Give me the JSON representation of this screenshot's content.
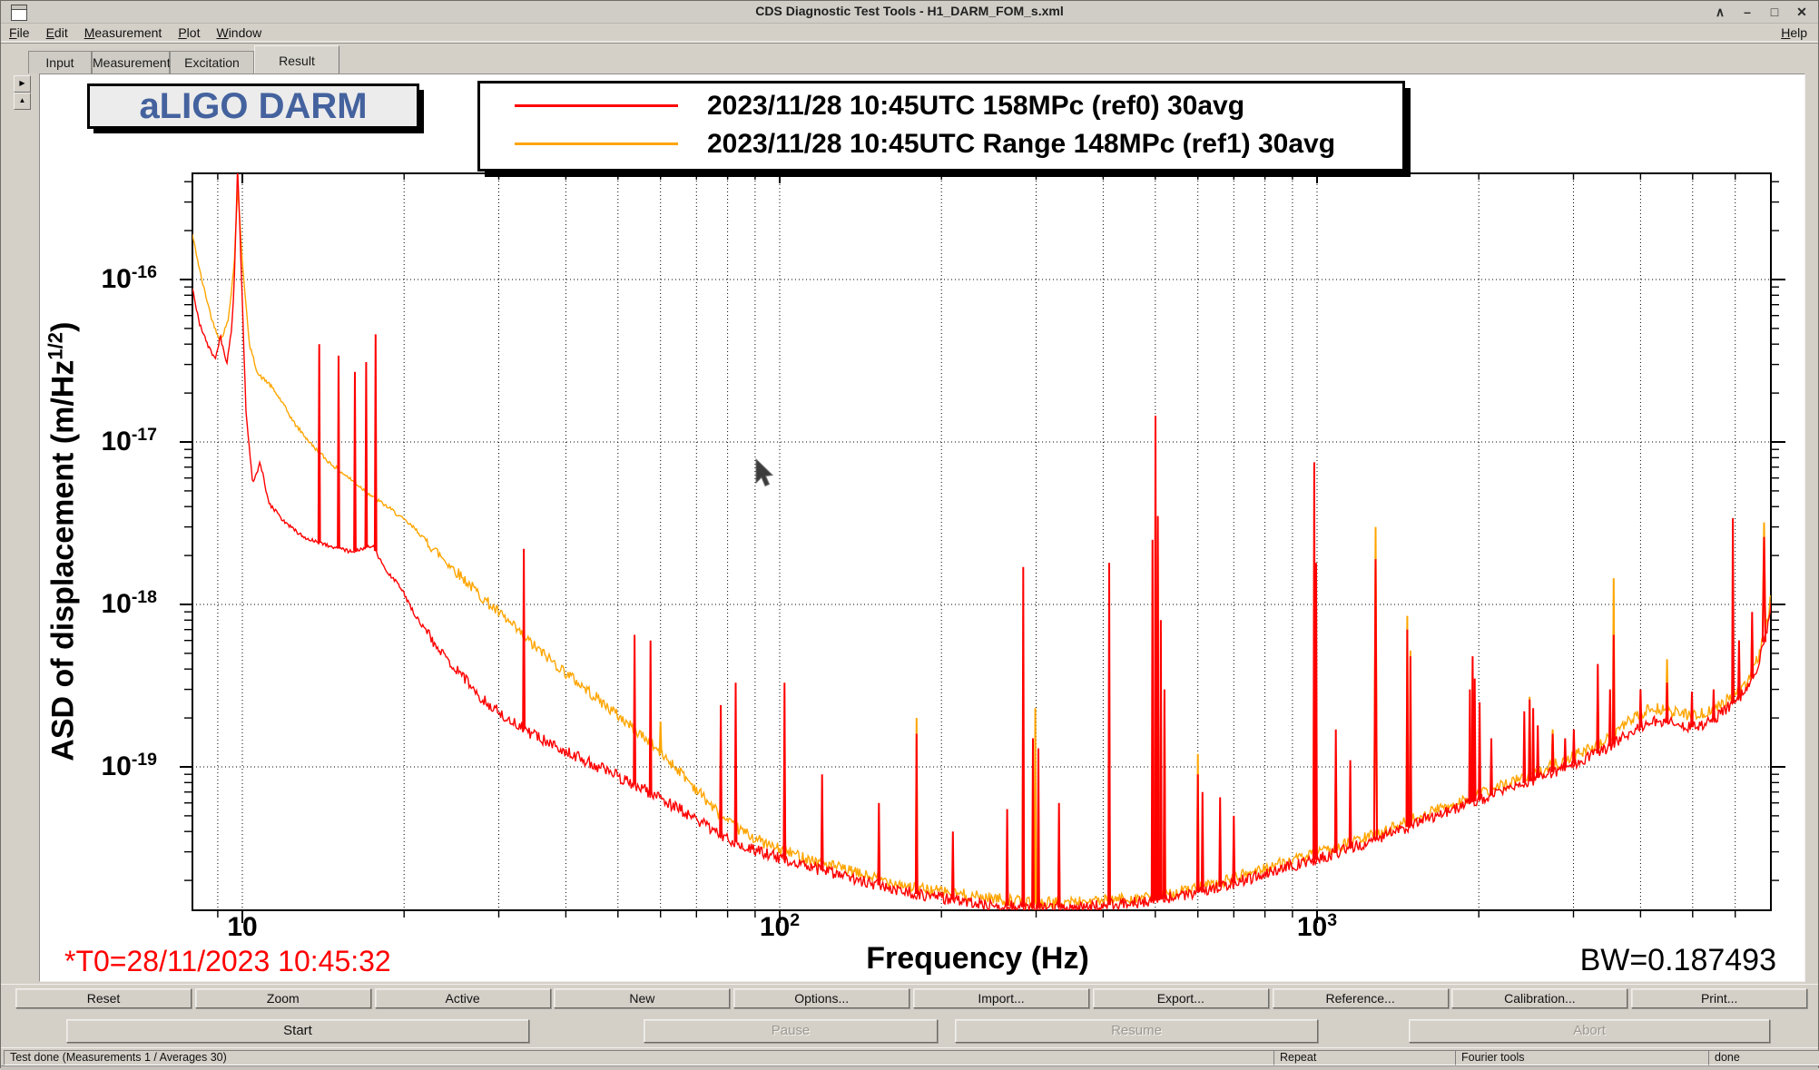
{
  "window": {
    "title": "CDS Diagnostic Test Tools - H1_DARM_FOM_s.xml",
    "controls": [
      {
        "name": "shade-icon",
        "glyph": "∧"
      },
      {
        "name": "minimize-icon",
        "glyph": "–"
      },
      {
        "name": "maximize-icon",
        "glyph": "□"
      },
      {
        "name": "close-icon",
        "glyph": "✕"
      }
    ]
  },
  "menubar": {
    "items": [
      "File",
      "Edit",
      "Measurement",
      "Plot",
      "Window"
    ],
    "right_item": "Help"
  },
  "tabs": {
    "items": [
      "Input",
      "Measurement",
      "Excitation",
      "Result"
    ],
    "active": "Result"
  },
  "side_buttons": [
    {
      "name": "expand-right-icon",
      "glyph": "▶"
    },
    {
      "name": "collapse-up-icon",
      "glyph": "▲"
    }
  ],
  "plot": {
    "title_box": "aLIGO DARM",
    "t0_note": "*T0=28/11/2023 10:45:32",
    "bw_note": "BW=0.187493",
    "xlabel": "Frequency (Hz)",
    "ylabel_prefix": "ASD of displacement (m/Hz",
    "ylabel_sup": "1/2",
    "ylabel_suffix": ")"
  },
  "chart_data": {
    "type": "line",
    "title": "aLIGO DARM",
    "xlabel": "Frequency (Hz)",
    "ylabel": "ASD of displacement (m/Hz^1/2)",
    "xscale": "log",
    "yscale": "log",
    "xlim": [
      8.07,
      7000
    ],
    "ylim": [
      1.3e-20,
      4.5e-16
    ],
    "grid": "dotted, all decade multiples on x, decades on y",
    "legend_position": "top",
    "xticks": [
      {
        "f": 10,
        "base": "10",
        "sup": ""
      },
      {
        "f": 100,
        "base": "10",
        "sup": "2"
      },
      {
        "f": 1000,
        "base": "10",
        "sup": "3"
      }
    ],
    "yticks": [
      {
        "a": 1e-16,
        "sup": "-16"
      },
      {
        "a": 1e-17,
        "sup": "-17"
      },
      {
        "a": 1e-18,
        "sup": "-18"
      },
      {
        "a": 1e-19,
        "sup": "-19"
      }
    ],
    "series": [
      {
        "name": "2023/11/28 10:45UTC Range 148MPc (ref1) 30avg",
        "color": "#ffa500",
        "backbone": [
          [
            8.07,
            1.9e-16
          ],
          [
            8.4,
            1e-16
          ],
          [
            8.8,
            5.5e-17
          ],
          [
            9.1,
            4.2e-17
          ],
          [
            9.4,
            5.5e-17
          ],
          [
            9.65,
            1.2e-16
          ],
          [
            9.8,
            3.7e-16
          ],
          [
            10.0,
            1.3e-16
          ],
          [
            10.3,
            4e-17
          ],
          [
            10.7,
            2.6e-17
          ],
          [
            11.2,
            2.3e-17
          ],
          [
            11.8,
            1.8e-17
          ],
          [
            12.5,
            1.3e-17
          ],
          [
            13.5,
            9.5e-18
          ],
          [
            14.5,
            7.5e-18
          ],
          [
            16,
            5.8e-18
          ],
          [
            17.5,
            4.6e-18
          ],
          [
            19,
            3.8e-18
          ],
          [
            21,
            2.9e-18
          ],
          [
            23,
            2.1e-18
          ],
          [
            25,
            1.6e-18
          ],
          [
            28,
            1.1e-18
          ],
          [
            31,
            8e-19
          ],
          [
            35,
            5.5e-19
          ],
          [
            40,
            3.8e-19
          ],
          [
            46,
            2.6e-19
          ],
          [
            55,
            1.6e-19
          ],
          [
            65,
            9.5e-20
          ],
          [
            80,
            4.5e-20
          ],
          [
            95,
            3.3e-20
          ],
          [
            110,
            2.8e-20
          ],
          [
            140,
            2.2e-20
          ],
          [
            180,
            1.8e-20
          ],
          [
            230,
            1.6e-20
          ],
          [
            300,
            1.45e-20
          ],
          [
            400,
            1.5e-20
          ],
          [
            500,
            1.6e-20
          ],
          [
            650,
            1.9e-20
          ],
          [
            800,
            2.4e-20
          ],
          [
            1000,
            2.9e-20
          ],
          [
            1300,
            3.9e-20
          ],
          [
            1700,
            5.6e-20
          ],
          [
            2200,
            7.6e-20
          ],
          [
            2800,
            1.05e-19
          ],
          [
            3400,
            1.4e-19
          ],
          [
            3800,
            1.9e-19
          ],
          [
            4200,
            2.3e-19
          ],
          [
            4600,
            2.2e-19
          ],
          [
            5000,
            2.05e-19
          ],
          [
            5400,
            2.2e-19
          ],
          [
            5900,
            2.7e-19
          ],
          [
            6300,
            3.3e-19
          ],
          [
            6600,
            4.6e-19
          ],
          [
            6850,
            7e-19
          ],
          [
            7000,
            1.15e-18
          ]
        ],
        "spikes": [
          [
            60,
            1.9e-19
          ],
          [
            102.1,
            9e-20
          ],
          [
            179.8,
            2e-19
          ],
          [
            283.9,
            3.5e-19
          ],
          [
            299,
            2.3e-19
          ],
          [
            410.3,
            1.6e-19
          ],
          [
            500.5,
            4e-18
          ],
          [
            505.5,
            2e-18
          ],
          [
            520,
            2.6e-19
          ],
          [
            600,
            1.2e-19
          ],
          [
            988,
            2.2e-18
          ],
          [
            1083.7,
            1.2e-19
          ],
          [
            1285,
            3e-18,
            0.006
          ],
          [
            1472,
            8.5e-19
          ],
          [
            1492,
            5.2e-19
          ],
          [
            1948,
            4e-19
          ],
          [
            2487,
            2.7e-19
          ],
          [
            2745,
            1.7e-19
          ],
          [
            3330,
            3.2e-19
          ],
          [
            3565,
            1.45e-18
          ],
          [
            4480,
            4.6e-19
          ],
          [
            5940,
            6e-19
          ],
          [
            6450,
            7e-19
          ],
          [
            6790,
            3.2e-18,
            0.006
          ]
        ]
      },
      {
        "name": "2023/11/28 10:45UTC 158MPc (ref0) 30avg",
        "color": "#ff0000",
        "backbone": [
          [
            8.07,
            9e-17
          ],
          [
            8.3,
            5.5e-17
          ],
          [
            8.6,
            4e-17
          ],
          [
            8.9,
            3.2e-17
          ],
          [
            9.1,
            4.5e-17
          ],
          [
            9.35,
            3e-17
          ],
          [
            9.55,
            5e-17
          ],
          [
            9.65,
            9e-17
          ],
          [
            9.8,
            5e-16
          ],
          [
            9.95,
            1.2e-16
          ],
          [
            10.15,
            1.6e-17
          ],
          [
            10.45,
            5.5e-18
          ],
          [
            10.8,
            7.5e-18
          ],
          [
            11.2,
            4.2e-18
          ],
          [
            12,
            3.2e-18
          ],
          [
            13,
            2.6e-18
          ],
          [
            14.5,
            2.3e-18
          ],
          [
            16,
            2.1e-18
          ],
          [
            17.5,
            2.3e-18
          ],
          [
            18.5,
            1.6e-18
          ],
          [
            19.5,
            1.35e-18
          ],
          [
            21,
            8.5e-19
          ],
          [
            23,
            5.5e-19
          ],
          [
            25,
            4e-19
          ],
          [
            28,
            2.6e-19
          ],
          [
            31,
            2e-19
          ],
          [
            35,
            1.55e-19
          ],
          [
            40,
            1.25e-19
          ],
          [
            46,
            1e-19
          ],
          [
            55,
            7.5e-20
          ],
          [
            65,
            5.5e-20
          ],
          [
            80,
            3.6e-20
          ],
          [
            95,
            2.9e-20
          ],
          [
            110,
            2.5e-20
          ],
          [
            140,
            2e-20
          ],
          [
            180,
            1.65e-20
          ],
          [
            230,
            1.45e-20
          ],
          [
            300,
            1.35e-20
          ],
          [
            400,
            1.4e-20
          ],
          [
            500,
            1.5e-20
          ],
          [
            650,
            1.8e-20
          ],
          [
            800,
            2.2e-20
          ],
          [
            1000,
            2.7e-20
          ],
          [
            1300,
            3.6e-20
          ],
          [
            1700,
            5.2e-20
          ],
          [
            2200,
            7e-20
          ],
          [
            2800,
            9.5e-20
          ],
          [
            3400,
            1.25e-19
          ],
          [
            3800,
            1.6e-19
          ],
          [
            4200,
            1.9e-19
          ],
          [
            4600,
            1.85e-19
          ],
          [
            5000,
            1.75e-19
          ],
          [
            5400,
            1.9e-19
          ],
          [
            5900,
            2.4e-19
          ],
          [
            6300,
            3e-19
          ],
          [
            6600,
            4.2e-19
          ],
          [
            6850,
            6.5e-19
          ],
          [
            7000,
            1.05e-18
          ]
        ],
        "spikes": [
          [
            13.9,
            4e-17
          ],
          [
            15.1,
            3.4e-17
          ],
          [
            16.2,
            2.7e-17
          ],
          [
            17.0,
            3.1e-17
          ],
          [
            17.7,
            4.6e-17
          ],
          [
            33.4,
            2.2e-18
          ],
          [
            53.7,
            6.5e-19
          ],
          [
            57.5,
            6e-19
          ],
          [
            77.7,
            2.4e-19
          ],
          [
            82.8,
            3.3e-19
          ],
          [
            102.1,
            3.3e-19
          ],
          [
            119.9,
            9e-20
          ],
          [
            153,
            6e-20
          ],
          [
            179.8,
            1.6e-19
          ],
          [
            210,
            4e-20
          ],
          [
            265,
            5.5e-20
          ],
          [
            283.9,
            1.7e-18
          ],
          [
            296,
            1.5e-19
          ],
          [
            303,
            1.3e-19
          ],
          [
            331,
            6e-20
          ],
          [
            410.3,
            1.8e-18
          ],
          [
            494,
            2.5e-18
          ],
          [
            500.5,
            1.45e-17
          ],
          [
            505.5,
            3.5e-18
          ],
          [
            512,
            8e-19
          ],
          [
            520,
            3e-19
          ],
          [
            600,
            9e-20
          ],
          [
            612,
            7e-20
          ],
          [
            660,
            6.5e-20
          ],
          [
            700,
            5e-20
          ],
          [
            988,
            7.5e-18
          ],
          [
            996,
            1.8e-18
          ],
          [
            1083.7,
            1.7e-19
          ],
          [
            1153,
            1.1e-19
          ],
          [
            1285,
            1.9e-18,
            0.006
          ],
          [
            1472,
            7e-19
          ],
          [
            1492,
            4.8e-19
          ],
          [
            1925,
            3e-19
          ],
          [
            1948,
            4.8e-19
          ],
          [
            1965,
            3.5e-19
          ],
          [
            2007,
            2.5e-19
          ],
          [
            2110,
            1.5e-19
          ],
          [
            2430,
            2.2e-19
          ],
          [
            2487,
            2.6e-19
          ],
          [
            2525,
            2.3e-19
          ],
          [
            2575,
            1.8e-19
          ],
          [
            2745,
            1.6e-19
          ],
          [
            2895,
            1.5e-19
          ],
          [
            3005,
            1.7e-19
          ],
          [
            3330,
            4.3e-19
          ],
          [
            3510,
            3e-19
          ],
          [
            3565,
            6.5e-19
          ],
          [
            4000,
            3e-19
          ],
          [
            4480,
            3.3e-19
          ],
          [
            4985,
            2.9e-19
          ],
          [
            5470,
            3e-19
          ],
          [
            5940,
            3.4e-18
          ],
          [
            6100,
            6e-19
          ],
          [
            6450,
            9e-19
          ],
          [
            6790,
            2.6e-18,
            0.006
          ]
        ]
      }
    ],
    "legend": [
      {
        "label": "2023/11/28 10:45UTC 158MPc (ref0) 30avg",
        "color": "#ff0000"
      },
      {
        "label": "2023/11/28 10:45UTC Range 148MPc (ref1) 30avg",
        "color": "#ffa500"
      }
    ]
  },
  "toolbar": {
    "buttons": [
      "Reset",
      "Zoom",
      "Active",
      "New",
      "Options...",
      "Import...",
      "Export...",
      "Reference...",
      "Calibration...",
      "Print..."
    ]
  },
  "controls": {
    "buttons": [
      {
        "label": "Start",
        "enabled": true
      },
      {
        "label": "Pause",
        "enabled": false
      },
      {
        "label": "Resume",
        "enabled": false
      },
      {
        "label": "Abort",
        "enabled": false
      }
    ]
  },
  "statusbar": {
    "segments": [
      "Test done (Measurements 1 / Averages 30)",
      "Repeat",
      "Fourier tools",
      "done"
    ]
  }
}
